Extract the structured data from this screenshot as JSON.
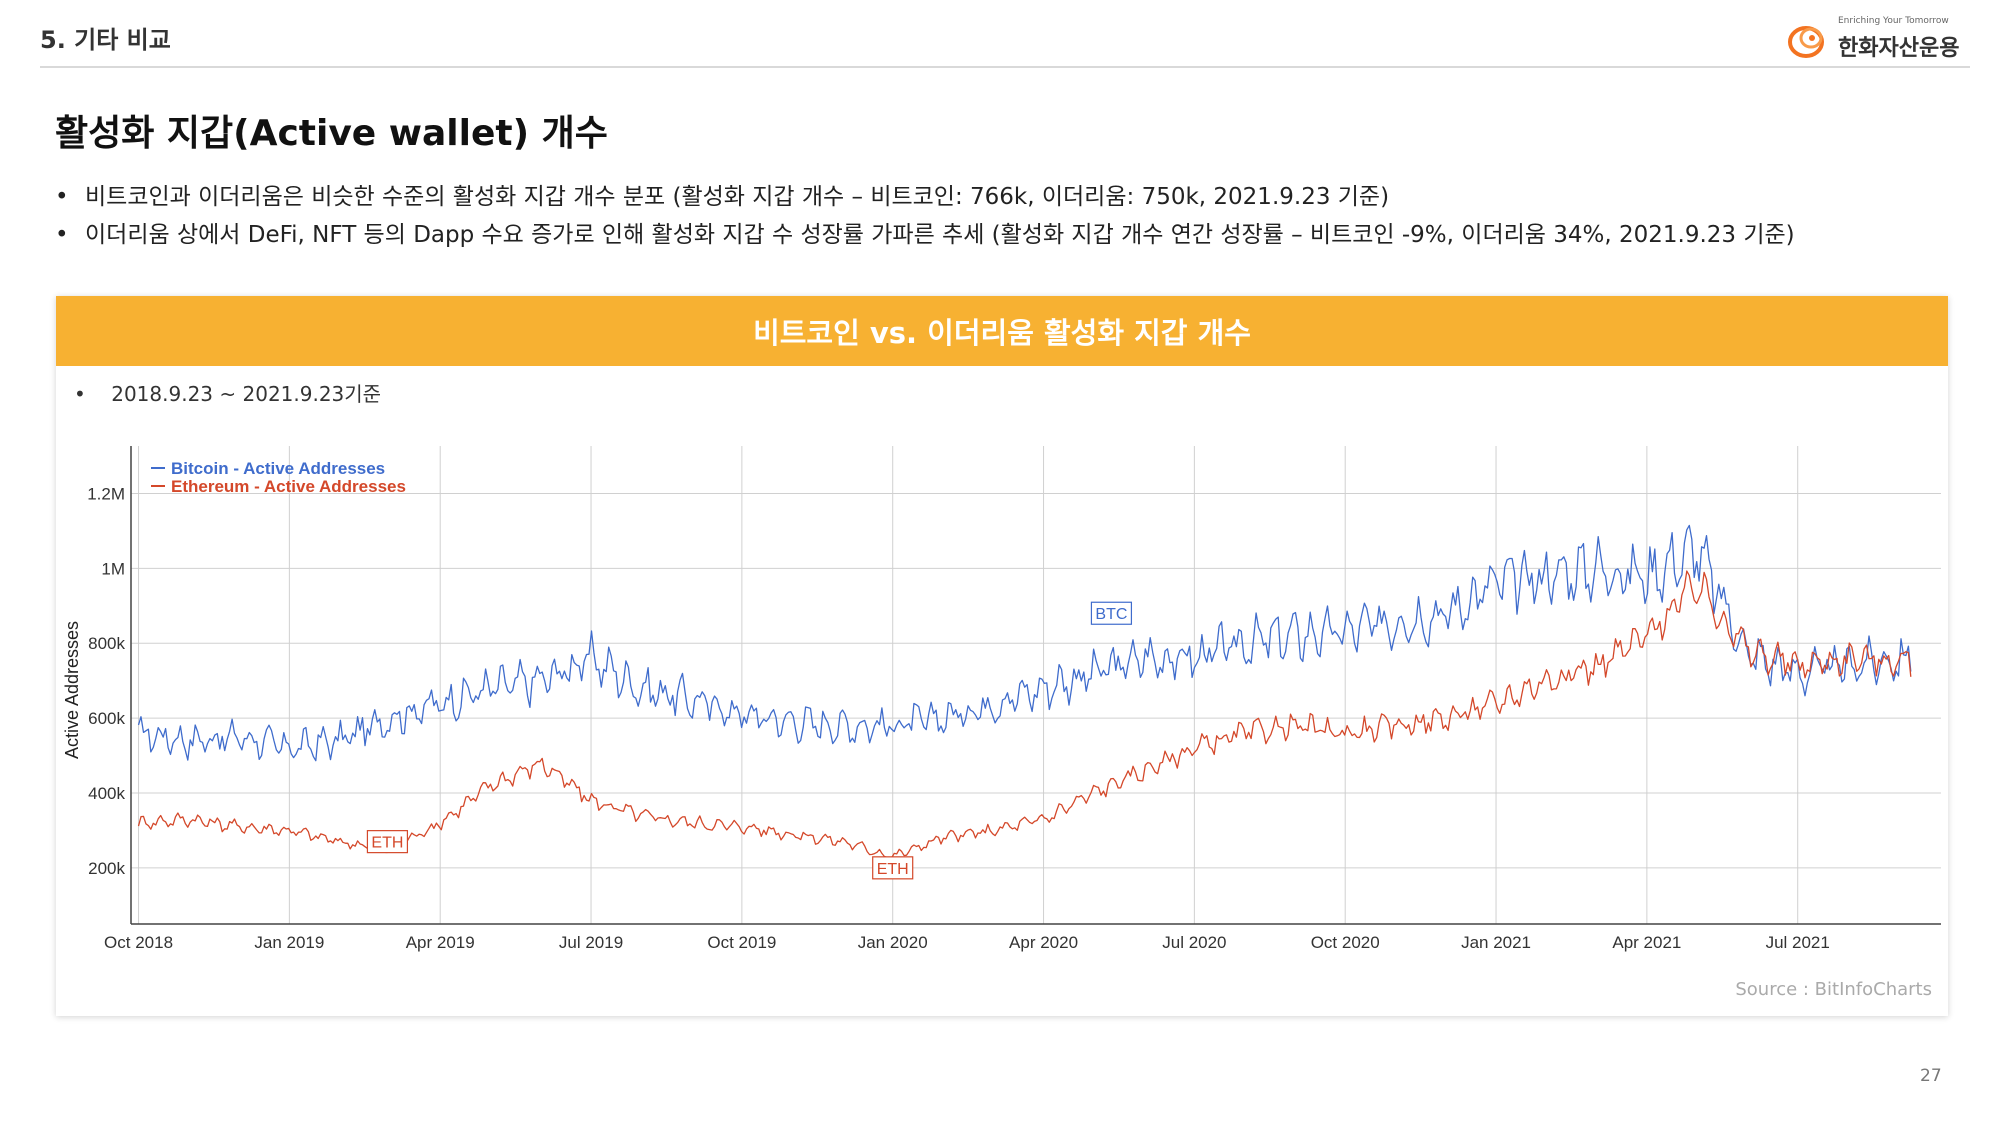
{
  "header": {
    "section_title": "5. 기타 비교",
    "logo_tagline": "Enriching Your Tomorrow",
    "logo_name": "한화자산운용",
    "logo_icon": "hanwha-flame-logo"
  },
  "page_title": "활성화 지갑(Active wallet) 개수",
  "bullets": [
    "비트코인과 이더리움은 비슷한 수준의 활성화 지갑 개수 분포 (활성화 지갑 개수 – 비트코인: 766k, 이더리움: 750k, 2021.9.23 기준)",
    "이더리움 상에서 DeFi, NFT 등의 Dapp 수요 증가로 인해 활성화 지갑 수 성장률 가파른 추세 (활성화 지갑 개수 연간 성장률 – 비트코인 -9%, 이더리움 34%, 2021.9.23 기준)"
  ],
  "panel": {
    "banner": "비트코인 vs. 이더리움 활성화 지갑 개수",
    "period": "2018.9.23 ~ 2021.9.23기준",
    "source": "Source : BitInfoCharts"
  },
  "page_number": "27",
  "colors": {
    "banner": "#f7b132",
    "btc": "#3f6ccc",
    "eth": "#d4482a",
    "grid": "#d0d0d0"
  },
  "chart_data": {
    "type": "line",
    "title": "",
    "xlabel": "",
    "ylabel": "Active Addresses",
    "x_ticks": [
      "Oct 2018",
      "Jan 2019",
      "Apr 2019",
      "Jul 2019",
      "Oct 2019",
      "Jan 2020",
      "Apr 2020",
      "Jul 2020",
      "Oct 2020",
      "Jan 2021",
      "Apr 2021",
      "Jul 2021"
    ],
    "y_ticks": [
      {
        "value": 200000,
        "label": "200k"
      },
      {
        "value": 400000,
        "label": "400k"
      },
      {
        "value": 600000,
        "label": "600k"
      },
      {
        "value": 800000,
        "label": "800k"
      },
      {
        "value": 1000000,
        "label": "1M"
      },
      {
        "value": 1200000,
        "label": "1.2M"
      }
    ],
    "ylim": [
      50000,
      1300000
    ],
    "xlim": [
      -0.05,
      11.95
    ],
    "legend_position": "top-left",
    "annotations": [
      {
        "text": "BTC",
        "x": 6.45,
        "y": 880000,
        "series": "btc"
      },
      {
        "text": "ETH",
        "x": 1.65,
        "y": 270000,
        "series": "eth"
      },
      {
        "text": "ETH",
        "x": 5.0,
        "y": 200000,
        "series": "eth"
      }
    ],
    "series": [
      {
        "id": "btc",
        "name": "Bitcoin - Active Addresses",
        "noise": 0.1,
        "x": [
          0,
          0.33,
          0.67,
          1,
          1.33,
          1.67,
          2,
          2.33,
          2.67,
          3,
          3.33,
          3.67,
          4,
          4.33,
          4.67,
          5,
          5.33,
          5.67,
          6,
          6.33,
          6.67,
          7,
          7.33,
          7.67,
          8,
          8.33,
          8.67,
          9,
          9.33,
          9.67,
          10,
          10.33,
          10.67,
          11,
          11.33,
          11.75
        ],
        "values": [
          560000,
          540000,
          550000,
          520000,
          540000,
          600000,
          640000,
          680000,
          700000,
          760000,
          680000,
          650000,
          610000,
          590000,
          580000,
          580000,
          600000,
          640000,
          680000,
          720000,
          760000,
          760000,
          800000,
          820000,
          830000,
          860000,
          880000,
          960000,
          980000,
          1000000,
          980000,
          1050000,
          770000,
          720000,
          740000,
          760000
        ]
      },
      {
        "id": "eth",
        "name": "Ethereum - Active Addresses",
        "noise": 0.07,
        "x": [
          0,
          0.33,
          0.67,
          1,
          1.33,
          1.67,
          2,
          2.33,
          2.67,
          3,
          3.33,
          3.67,
          4,
          4.33,
          4.67,
          5,
          5.33,
          5.67,
          6,
          6.33,
          6.67,
          7,
          7.33,
          7.67,
          8,
          8.33,
          8.67,
          9,
          9.33,
          9.67,
          10,
          10.33,
          10.67,
          11,
          11.33,
          11.75
        ],
        "values": [
          320000,
          330000,
          310000,
          300000,
          270000,
          250000,
          320000,
          420000,
          480000,
          380000,
          340000,
          320000,
          310000,
          290000,
          270000,
          230000,
          280000,
          300000,
          330000,
          400000,
          460000,
          520000,
          560000,
          580000,
          560000,
          580000,
          600000,
          640000,
          700000,
          740000,
          820000,
          960000,
          780000,
          740000,
          760000,
          750000
        ]
      }
    ]
  }
}
